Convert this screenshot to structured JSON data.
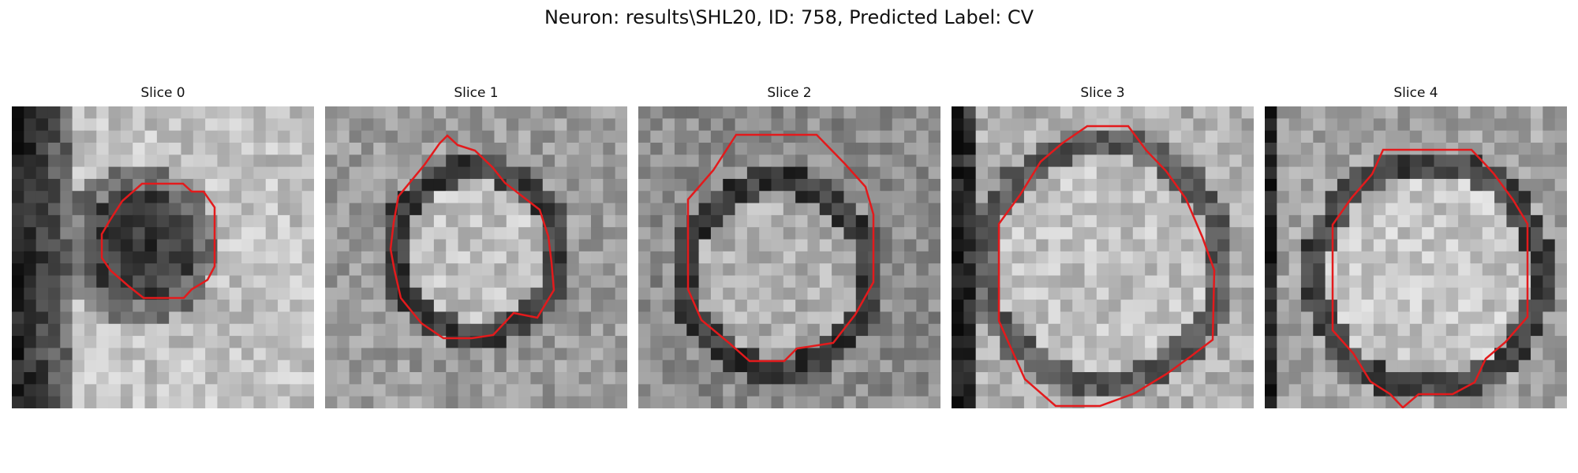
{
  "figure": {
    "title": "Neuron: results\\SHL20, ID: 758, Predicted Label: CV"
  },
  "panels": [
    {
      "title": "Slice 0",
      "contour_color": "#e31a1c"
    },
    {
      "title": "Slice 1",
      "contour_color": "#e31a1c"
    },
    {
      "title": "Slice 2",
      "contour_color": "#e31a1c"
    },
    {
      "title": "Slice 3",
      "contour_color": "#e31a1c"
    },
    {
      "title": "Slice 4",
      "contour_color": "#e31a1c"
    }
  ]
}
